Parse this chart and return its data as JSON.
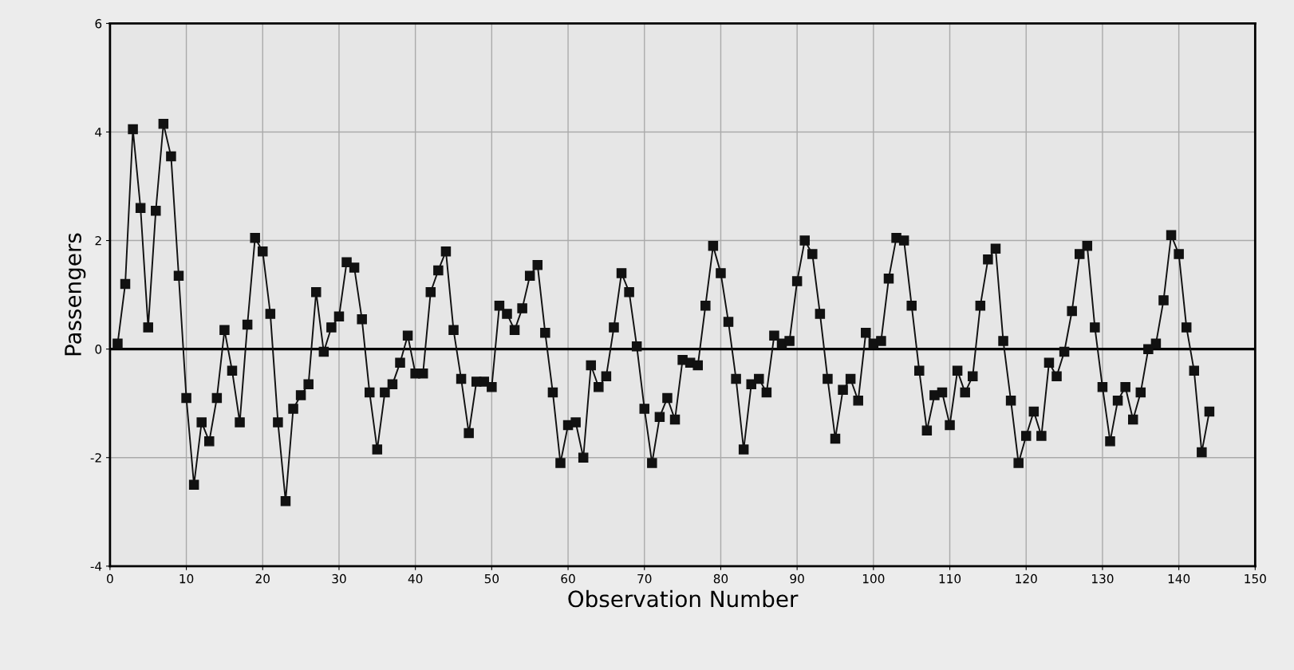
{
  "chart_data": {
    "type": "line",
    "xlabel": "Observation Number",
    "ylabel": "Passengers",
    "x": [
      1,
      2,
      3,
      4,
      5,
      6,
      7,
      8,
      9,
      10,
      11,
      12,
      13,
      14,
      15,
      16,
      17,
      18,
      19,
      20,
      21,
      22,
      23,
      24,
      25,
      26,
      27,
      28,
      29,
      30,
      31,
      32,
      33,
      34,
      35,
      36,
      37,
      38,
      39,
      40,
      41,
      42,
      43,
      44,
      45,
      46,
      47,
      48,
      49,
      50,
      51,
      52,
      53,
      54,
      55,
      56,
      57,
      58,
      59,
      60,
      61,
      62,
      63,
      64,
      65,
      66,
      67,
      68,
      69,
      70,
      71,
      72,
      73,
      74,
      75,
      76,
      77,
      78,
      79,
      80,
      81,
      82,
      83,
      84,
      85,
      86,
      87,
      88,
      89,
      90,
      91,
      92,
      93,
      94,
      95,
      96,
      97,
      98,
      99,
      100,
      101,
      102,
      103,
      104,
      105,
      106,
      107,
      108,
      109,
      110,
      111,
      112,
      113,
      114,
      115,
      116,
      117,
      118,
      119,
      120,
      121,
      122,
      123,
      124,
      125,
      126,
      127,
      128,
      129,
      130,
      131,
      132,
      133,
      134,
      135,
      136,
      137,
      138,
      139,
      140,
      141,
      142,
      143,
      144
    ],
    "series": [
      {
        "color": "#111111",
        "values": [
          0.1,
          1.2,
          4.05,
          2.6,
          0.4,
          2.55,
          4.15,
          3.55,
          1.35,
          -0.9,
          -2.5,
          -1.35,
          -1.7,
          -0.9,
          0.35,
          -0.4,
          -1.35,
          0.45,
          2.05,
          1.8,
          0.65,
          -1.35,
          -2.8,
          -1.1,
          -0.85,
          -0.65,
          1.05,
          -0.05,
          0.4,
          0.6,
          1.6,
          1.5,
          0.55,
          -0.8,
          -1.85,
          -0.8,
          -0.65,
          -0.25,
          0.25,
          -0.45,
          -0.45,
          1.05,
          1.45,
          1.8,
          0.35,
          -0.55,
          -1.55,
          -0.6,
          -0.6,
          -0.7,
          0.8,
          0.65,
          0.35,
          0.75,
          1.35,
          1.55,
          0.3,
          -0.8,
          -2.1,
          -1.4,
          -1.35,
          -2.0,
          -0.3,
          -0.7,
          -0.5,
          0.4,
          1.4,
          1.05,
          0.05,
          -1.1,
          -2.1,
          -1.25,
          -0.9,
          -1.3,
          -0.2,
          -0.25,
          -0.3,
          0.8,
          1.9,
          1.4,
          0.5,
          -0.55,
          -1.85,
          -0.65,
          -0.55,
          -0.8,
          0.25,
          0.1,
          0.15,
          1.25,
          2.0,
          1.75,
          0.65,
          -0.55,
          -1.65,
          -0.75,
          -0.55,
          -0.95,
          0.3,
          0.1,
          0.15,
          1.3,
          2.05,
          2.0,
          0.8,
          -0.4,
          -1.5,
          -0.85,
          -0.8,
          -1.4,
          -0.4,
          -0.8,
          -0.5,
          0.8,
          1.65,
          1.85,
          0.15,
          -0.95,
          -2.1,
          -1.6,
          -1.15,
          -1.6,
          -0.25,
          -0.5,
          -0.05,
          0.7,
          1.75,
          1.9,
          0.4,
          -0.7,
          -1.7,
          -0.95,
          -0.7,
          -1.3,
          -0.8,
          0.0,
          0.1,
          0.9,
          2.1,
          1.75,
          0.4,
          -0.4,
          -1.9,
          -1.15
        ]
      }
    ],
    "xlim": [
      0,
      150
    ],
    "xticks": [
      0,
      10,
      20,
      30,
      40,
      50,
      60,
      70,
      80,
      90,
      100,
      110,
      120,
      130,
      140,
      150
    ],
    "ylim": [
      -4,
      6
    ],
    "yticks": [
      -4,
      -2,
      0,
      2,
      4,
      6
    ],
    "ref_lines": [
      {
        "axis": "y",
        "value": 0,
        "color": "#000000"
      }
    ],
    "grid": true,
    "marker": "square",
    "line_style": "solid"
  }
}
